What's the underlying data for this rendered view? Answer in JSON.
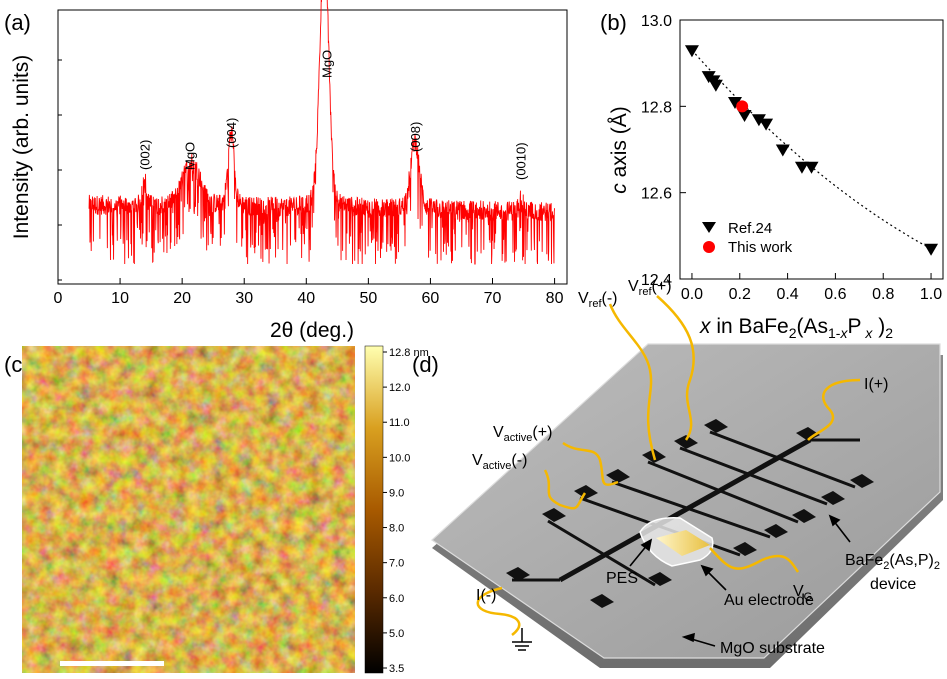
{
  "panels": {
    "a": {
      "label": "(a)"
    },
    "b": {
      "label": "(b)"
    },
    "c": {
      "label": "(c)"
    },
    "d": {
      "label": "(d)"
    }
  },
  "colors": {
    "xrd": "#ff0000",
    "ref": "#000000",
    "this_work": "#ff0000",
    "wire": "#f5b800",
    "substrate": "#9a9a9a"
  },
  "chart_data": [
    {
      "panel": "a",
      "type": "line",
      "xlabel": "2θ (deg.)",
      "ylabel": "Intensity (arb. units)",
      "xlim": [
        0,
        82
      ],
      "xticks": [
        0,
        10,
        20,
        30,
        40,
        50,
        60,
        70,
        80
      ],
      "log_y": true,
      "x_range": [
        5,
        80
      ],
      "background_log_level": 1.0,
      "peaks": [
        {
          "x": 13.9,
          "height": 0.45,
          "width": 0.3,
          "label": "(002)"
        },
        {
          "x": 21.5,
          "height": 0.7,
          "width": 1.4,
          "label": "MgO"
        },
        {
          "x": 27.9,
          "height": 1.2,
          "width": 0.5,
          "label": "(004)"
        },
        {
          "x": 42.9,
          "height": 4.2,
          "width": 0.7,
          "label": "MgO"
        },
        {
          "x": 57.5,
          "height": 1.1,
          "width": 0.7,
          "label": "(008)"
        },
        {
          "x": 74.5,
          "height": 0.2,
          "width": 0.4,
          "label": "(0010)"
        }
      ]
    },
    {
      "panel": "b",
      "type": "scatter",
      "xlabel": "x in BaFe2(As1-xPx)2",
      "ylabel": "c axis (Å)",
      "xlim": [
        -0.05,
        1.05
      ],
      "ylim": [
        12.4,
        13.0
      ],
      "xticks": [
        "0.0",
        "0.2",
        "0.4",
        "0.6",
        "0.8",
        "1.0"
      ],
      "yticks": [
        "12.4",
        "12.6",
        "12.8",
        "13.0"
      ],
      "legend_position": "bottom-left",
      "series": [
        {
          "name": "Ref.24",
          "marker": "triangle-down",
          "x": [
            0.0,
            0.07,
            0.09,
            0.1,
            0.18,
            0.22,
            0.28,
            0.31,
            0.38,
            0.46,
            0.5,
            1.0
          ],
          "y": [
            12.93,
            12.87,
            12.86,
            12.85,
            12.81,
            12.78,
            12.77,
            12.76,
            12.7,
            12.66,
            12.66,
            12.47
          ]
        },
        {
          "name": "This work",
          "marker": "circle",
          "x": [
            0.21
          ],
          "y": [
            12.8
          ]
        }
      ],
      "fit_curve": {
        "x": [
          0.0,
          0.2,
          0.4,
          0.6,
          0.8,
          1.0
        ],
        "y": [
          12.93,
          12.81,
          12.7,
          12.61,
          12.53,
          12.47
        ]
      }
    }
  ],
  "afm": {
    "colorbar_ticks": [
      "12.8 nm",
      "12.0",
      "11.0",
      "10.0",
      "9.0",
      "8.0",
      "7.0",
      "6.0",
      "5.0",
      "3.5"
    ]
  },
  "device": {
    "labels": {
      "i_plus": "I(+)",
      "i_minus": "I(-)",
      "vref_minus_v": "V",
      "vref_minus_sub": "ref",
      "vref_minus_sign": "(-)",
      "vref_plus_v": "V",
      "vref_plus_sub": "ref",
      "vref_plus_sign": "(+)",
      "vact_plus_v": "V",
      "vact_plus_sub": "active",
      "vact_plus_sign": "(+)",
      "vact_minus_v": "V",
      "vact_minus_sub": "active",
      "vact_minus_sign": "(-)",
      "pes": "PES",
      "au": "Au electrode",
      "vg_v": "V",
      "vg_sub": "G",
      "dev1_pre": "BaFe",
      "dev1_sub1": "2",
      "dev1_mid": "(As,P)",
      "dev1_sub2": "2",
      "dev2": "device",
      "mgo": "MgO substrate"
    }
  }
}
